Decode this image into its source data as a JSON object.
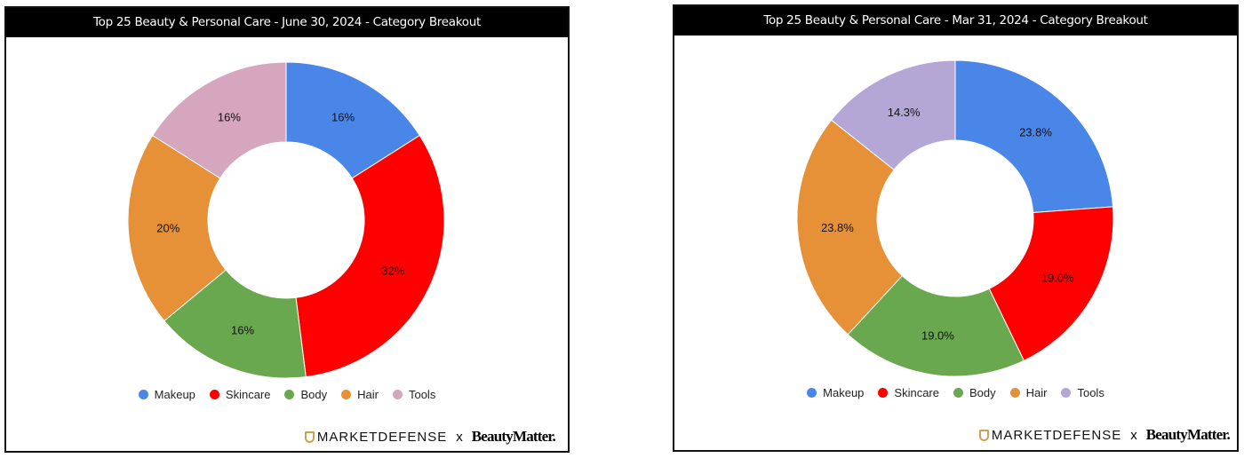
{
  "chart_data": [
    {
      "type": "pie",
      "title": "Top 25 Beauty & Personal Care - June 30, 2024 - Category Breakout",
      "categories": [
        "Makeup",
        "Skincare",
        "Body",
        "Hair",
        "Tools"
      ],
      "values": [
        16,
        32,
        16,
        20,
        16
      ],
      "labels": [
        "16%",
        "32%",
        "16%",
        "20%",
        "16%"
      ],
      "colors": [
        "#4a86e8",
        "#ff0000",
        "#6aa84f",
        "#e69138",
        "#d5a6bd"
      ],
      "legend": "bottom",
      "donut": true
    },
    {
      "type": "pie",
      "title": "Top 25 Beauty & Personal Care - Mar 31, 2024 - Category Breakout",
      "categories": [
        "Makeup",
        "Skincare",
        "Body",
        "Hair",
        "Tools"
      ],
      "values": [
        23.8,
        19.0,
        19.0,
        23.8,
        14.3
      ],
      "labels": [
        "23.8%",
        "19.0%",
        "19.0%",
        "23.8%",
        "14.3%"
      ],
      "colors": [
        "#4a86e8",
        "#ff0000",
        "#6aa84f",
        "#e69138",
        "#b4a7d6"
      ],
      "legend": "bottom",
      "donut": true
    }
  ],
  "branding": {
    "left": "MARKETDEFENSE",
    "sep": "x",
    "right": "BeautyMatter."
  }
}
